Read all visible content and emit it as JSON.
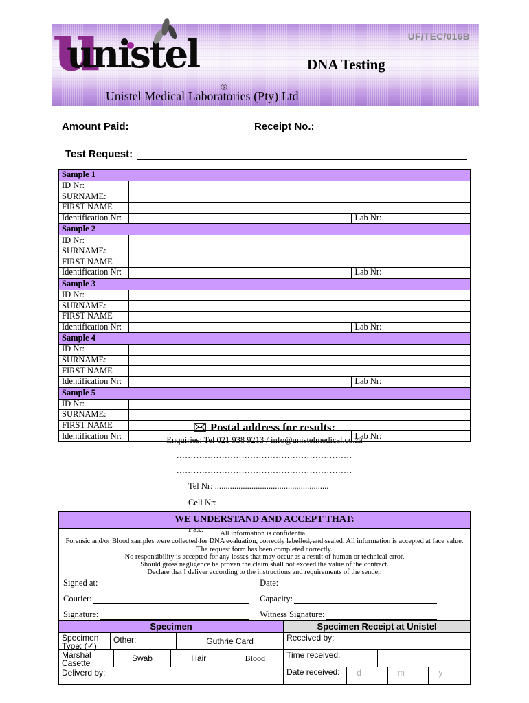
{
  "header": {
    "form_code": "UF/TEC/016B",
    "title": "DNA Testing",
    "company_name": "Unistel Medical Laboratories (Pty) Ltd",
    "logo_text": "unistel",
    "logo_big_letter": "u",
    "registered_mark": "®"
  },
  "payment": {
    "amount_label": "Amount Paid:",
    "receipt_label": "Receipt No.:",
    "test_request_label": "Test Request:"
  },
  "samples": {
    "sections": [
      "Sample 1",
      "Sample 2",
      "Sample 3",
      "Sample 4",
      "Sample 5"
    ],
    "row_labels": [
      "ID Nr:",
      "SURNAME:",
      "FIRST NAME",
      "Identification Nr:"
    ],
    "lab_nr_label": "Lab Nr:"
  },
  "postal": {
    "title": "Postal address for results:",
    "enquiries": "Enquiries:  Tel 021 938 9213 / info@unistelmedical.co.za",
    "address_lines": [
      "..............................................................",
      ".............................................................."
    ],
    "tel_line": "Tel Nr: .....................................................",
    "cell_line": "Cell Nr: ……………........................................",
    "fax_line": "Fax: ……………….........................................."
  },
  "agreement": {
    "title": "WE UNDERSTAND AND ACCEPT THAT:",
    "lines": [
      "All information is confidential.",
      "Forensic and/or Blood samples were collected for DNA evaluation, correctly labelled, and sealed. All information is accepted at face value.",
      "The request form has been completed correctly.",
      "No responsibility is accepted for any losses that may occur as a result of human or technical error.",
      "Should gross negligence be proven the claim shall not exceed the value of the contract.",
      "Declare that I deliver according to the instructions and requirements of the sender."
    ],
    "signed_at_label": "Signed at:",
    "date_label": "Date:",
    "courier_label": "Courier:",
    "capacity_label": "Capacity:",
    "signature_label": "Signature:",
    "witness_label": "Witness Signature:"
  },
  "specimen": {
    "left_header": "Specimen",
    "right_header": "Specimen Receipt at Unistel",
    "type_label": "Specimen Type: (✓)",
    "other_label": "Other:",
    "guthrie_label": "Guthrie Card",
    "marshal_label": "Marshal Casette",
    "swab_label": "Swab",
    "hair_label": "Hair",
    "blood_label": "Blood",
    "delivered_label": "Deliverd by:",
    "received_label": "Received by:",
    "time_label": "Time received:",
    "date_label": "Date received:",
    "dmy": [
      "d",
      "m",
      "y"
    ]
  },
  "colors": {
    "section_purple": "#CC99FF",
    "banner_purple": "#B68FDD",
    "receipt_header_gray": "#DCDCDC",
    "logo_purple": "#8C2B8C",
    "dmy_gray": "#ABABAB",
    "form_code_gray": "#8A8A8A"
  }
}
